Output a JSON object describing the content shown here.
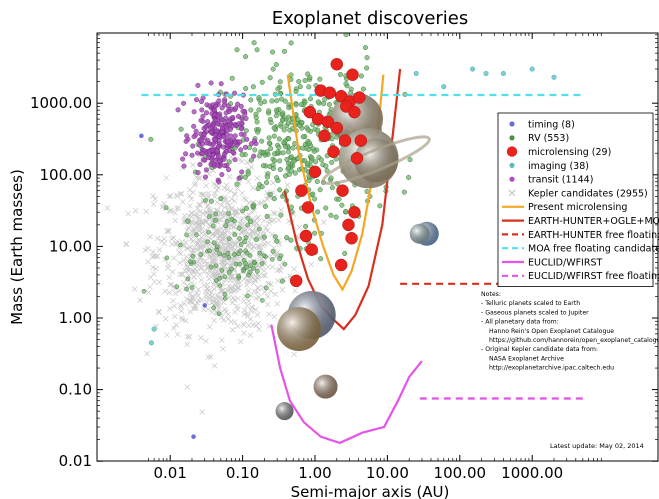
{
  "chart_data": {
    "type": "scatter",
    "title": "Exoplanet discoveries",
    "xlabel": "Semi-major axis (AU)",
    "ylabel": "Mass (Earth masses)",
    "xscale": "log",
    "yscale": "log",
    "xlim": [
      0.004,
      5000
    ],
    "ylim": [
      0.01,
      10000
    ],
    "xticks": [
      {
        "v": 0.01,
        "label": "0.01"
      },
      {
        "v": 0.1,
        "label": "0.10"
      },
      {
        "v": 1,
        "label": "1.00"
      },
      {
        "v": 10,
        "label": "10.00"
      },
      {
        "v": 100,
        "label": "100.00"
      },
      {
        "v": 1000,
        "label": "1000.00"
      }
    ],
    "yticks": [
      {
        "v": 0.01,
        "label": "0.01"
      },
      {
        "v": 0.1,
        "label": "0.10"
      },
      {
        "v": 1,
        "label": "1.00"
      },
      {
        "v": 10,
        "label": "10.00"
      },
      {
        "v": 100,
        "label": "100.00"
      },
      {
        "v": 1000,
        "label": "1000.00"
      }
    ],
    "legend_position": "right",
    "legend": [
      {
        "label": "timing (8)",
        "kind": "dot",
        "color": "#6d6fd8"
      },
      {
        "label": "RV (553)",
        "kind": "dot",
        "color": "#4a8f3c"
      },
      {
        "label": "microlensing (29)",
        "kind": "bigdot",
        "color": "#e8231d"
      },
      {
        "label": "imaging (38)",
        "kind": "dot",
        "color": "#5bbcc0"
      },
      {
        "label": "transit (1144)",
        "kind": "dot",
        "color": "#b04dc0"
      },
      {
        "label": "Kepler candidates (2955)",
        "kind": "cross",
        "color": "#bdbdbd"
      },
      {
        "label": "Present microlensing",
        "kind": "line",
        "color": "#f5a623",
        "dash": ""
      },
      {
        "label": "EARTH-HUNTER+OGLE+MOA",
        "kind": "line",
        "color": "#d7301f",
        "dash": ""
      },
      {
        "label": "EARTH-HUNTER free floating",
        "kind": "line",
        "color": "#d7301f",
        "dash": "6,4"
      },
      {
        "label": "MOA free floating candidate",
        "kind": "line",
        "color": "#4fe0ea",
        "dash": "6,4"
      },
      {
        "label": "EUCLID/WFIRST",
        "kind": "line",
        "color": "#e454e8",
        "dash": ""
      },
      {
        "label": "EUCLID/WFIRST free floating",
        "kind": "line",
        "color": "#e454e8",
        "dash": "6,4"
      }
    ],
    "series": [
      {
        "name": "Present microlensing",
        "color": "#f5a623",
        "style": "solid",
        "x": [
          0.42,
          0.6,
          0.9,
          1.3,
          1.8,
          2.4,
          3.2,
          4.5,
          6.5,
          8.8
        ],
        "y": [
          2500,
          200,
          35,
          10,
          4,
          2.5,
          4.5,
          15,
          120,
          2500
        ]
      },
      {
        "name": "EARTH-HUNTER+OGLE+MOA",
        "color": "#d7301f",
        "style": "solid",
        "x": [
          0.38,
          0.55,
          0.8,
          1.2,
          1.8,
          2.5,
          3.6,
          5.5,
          8.5,
          12,
          15
        ],
        "y": [
          60,
          12,
          3.5,
          1.5,
          0.95,
          0.7,
          1.1,
          2.8,
          20,
          400,
          3000
        ]
      },
      {
        "name": "EARTH-HUNTER free floating",
        "color": "#d7301f",
        "style": "dashed",
        "x": [
          15,
          5000
        ],
        "y": [
          3,
          3
        ]
      },
      {
        "name": "MOA free floating candidate",
        "color": "#4fe0ea",
        "style": "dashed",
        "x": [
          0.004,
          5000
        ],
        "y": [
          1300,
          1300
        ]
      },
      {
        "name": "EUCLID/WFIRST",
        "color": "#e454e8",
        "style": "solid",
        "x": [
          0.25,
          0.33,
          0.45,
          0.7,
          1.2,
          2.2,
          4.5,
          9,
          14,
          20,
          30
        ],
        "y": [
          0.8,
          0.2,
          0.07,
          0.035,
          0.022,
          0.018,
          0.025,
          0.03,
          0.07,
          0.15,
          0.25
        ]
      },
      {
        "name": "EUCLID/WFIRST free floating",
        "color": "#e454e8",
        "style": "dashed",
        "x": [
          28,
          5000
        ],
        "y": [
          0.075,
          0.075
        ]
      }
    ],
    "microlensing_points": {
      "x": [
        2.0,
        3.3,
        1.2,
        1.6,
        2.3,
        3.0,
        4.1,
        2.7,
        3.5,
        0.85,
        1.1,
        1.5,
        2.0,
        1.35,
        2.6,
        4.3,
        1.8,
        3.8,
        1.0,
        0.65,
        2.4,
        0.8,
        3.5,
        2.9,
        0.75,
        3.2,
        0.9,
        2.3,
        0.55
      ],
      "y": [
        3500,
        2500,
        1500,
        1400,
        1250,
        1050,
        1200,
        900,
        750,
        750,
        600,
        550,
        450,
        350,
        300,
        300,
        210,
        170,
        110,
        60,
        60,
        35,
        30,
        20,
        14,
        13,
        9,
        5.5,
        3.3
      ]
    },
    "planet_images": [
      {
        "name": "jupiter-like",
        "x": 3.8,
        "y": 600,
        "r": 26,
        "color": "#c9b08a"
      },
      {
        "name": "jupiter-like-2",
        "x": 5.5,
        "y": 170,
        "r": 30,
        "color": "#d6c7a0"
      },
      {
        "name": "saturn-like",
        "x": 7.0,
        "y": 160,
        "r": 22,
        "color": "#c7b48c"
      },
      {
        "name": "neptune-like",
        "x": 35,
        "y": 15,
        "r": 12,
        "color": "#6fa0d8"
      },
      {
        "name": "uranus-like",
        "x": 28,
        "y": 15,
        "r": 10,
        "color": "#a8c8d0"
      },
      {
        "name": "earth-like",
        "x": 0.9,
        "y": 1.1,
        "r": 24,
        "color": "#7f8fb0"
      },
      {
        "name": "venus-like",
        "x": 0.6,
        "y": 0.7,
        "r": 22,
        "color": "#c49a5a"
      },
      {
        "name": "mars-like",
        "x": 1.4,
        "y": 0.11,
        "r": 12,
        "color": "#b08a6a"
      },
      {
        "name": "mercury-like",
        "x": 0.38,
        "y": 0.05,
        "r": 9,
        "color": "#8a8a8a"
      }
    ]
  },
  "notes": [
    "Notes:",
    "- Telluric planets scaled to Earth",
    "- Gaseous planets scaled to Jupiter",
    "- All planetary data from:",
    "Hanno Rein's Open Exoplanet Catalogue",
    "https://github.com/hannorein/open_exoplanet_catalogue",
    "- Original Kepler candidate data from:",
    "NASA Exoplanet Archive",
    "http://exoplanetarchive.ipac.caltech.edu"
  ],
  "update_text": "Latest update: May 02, 2014"
}
